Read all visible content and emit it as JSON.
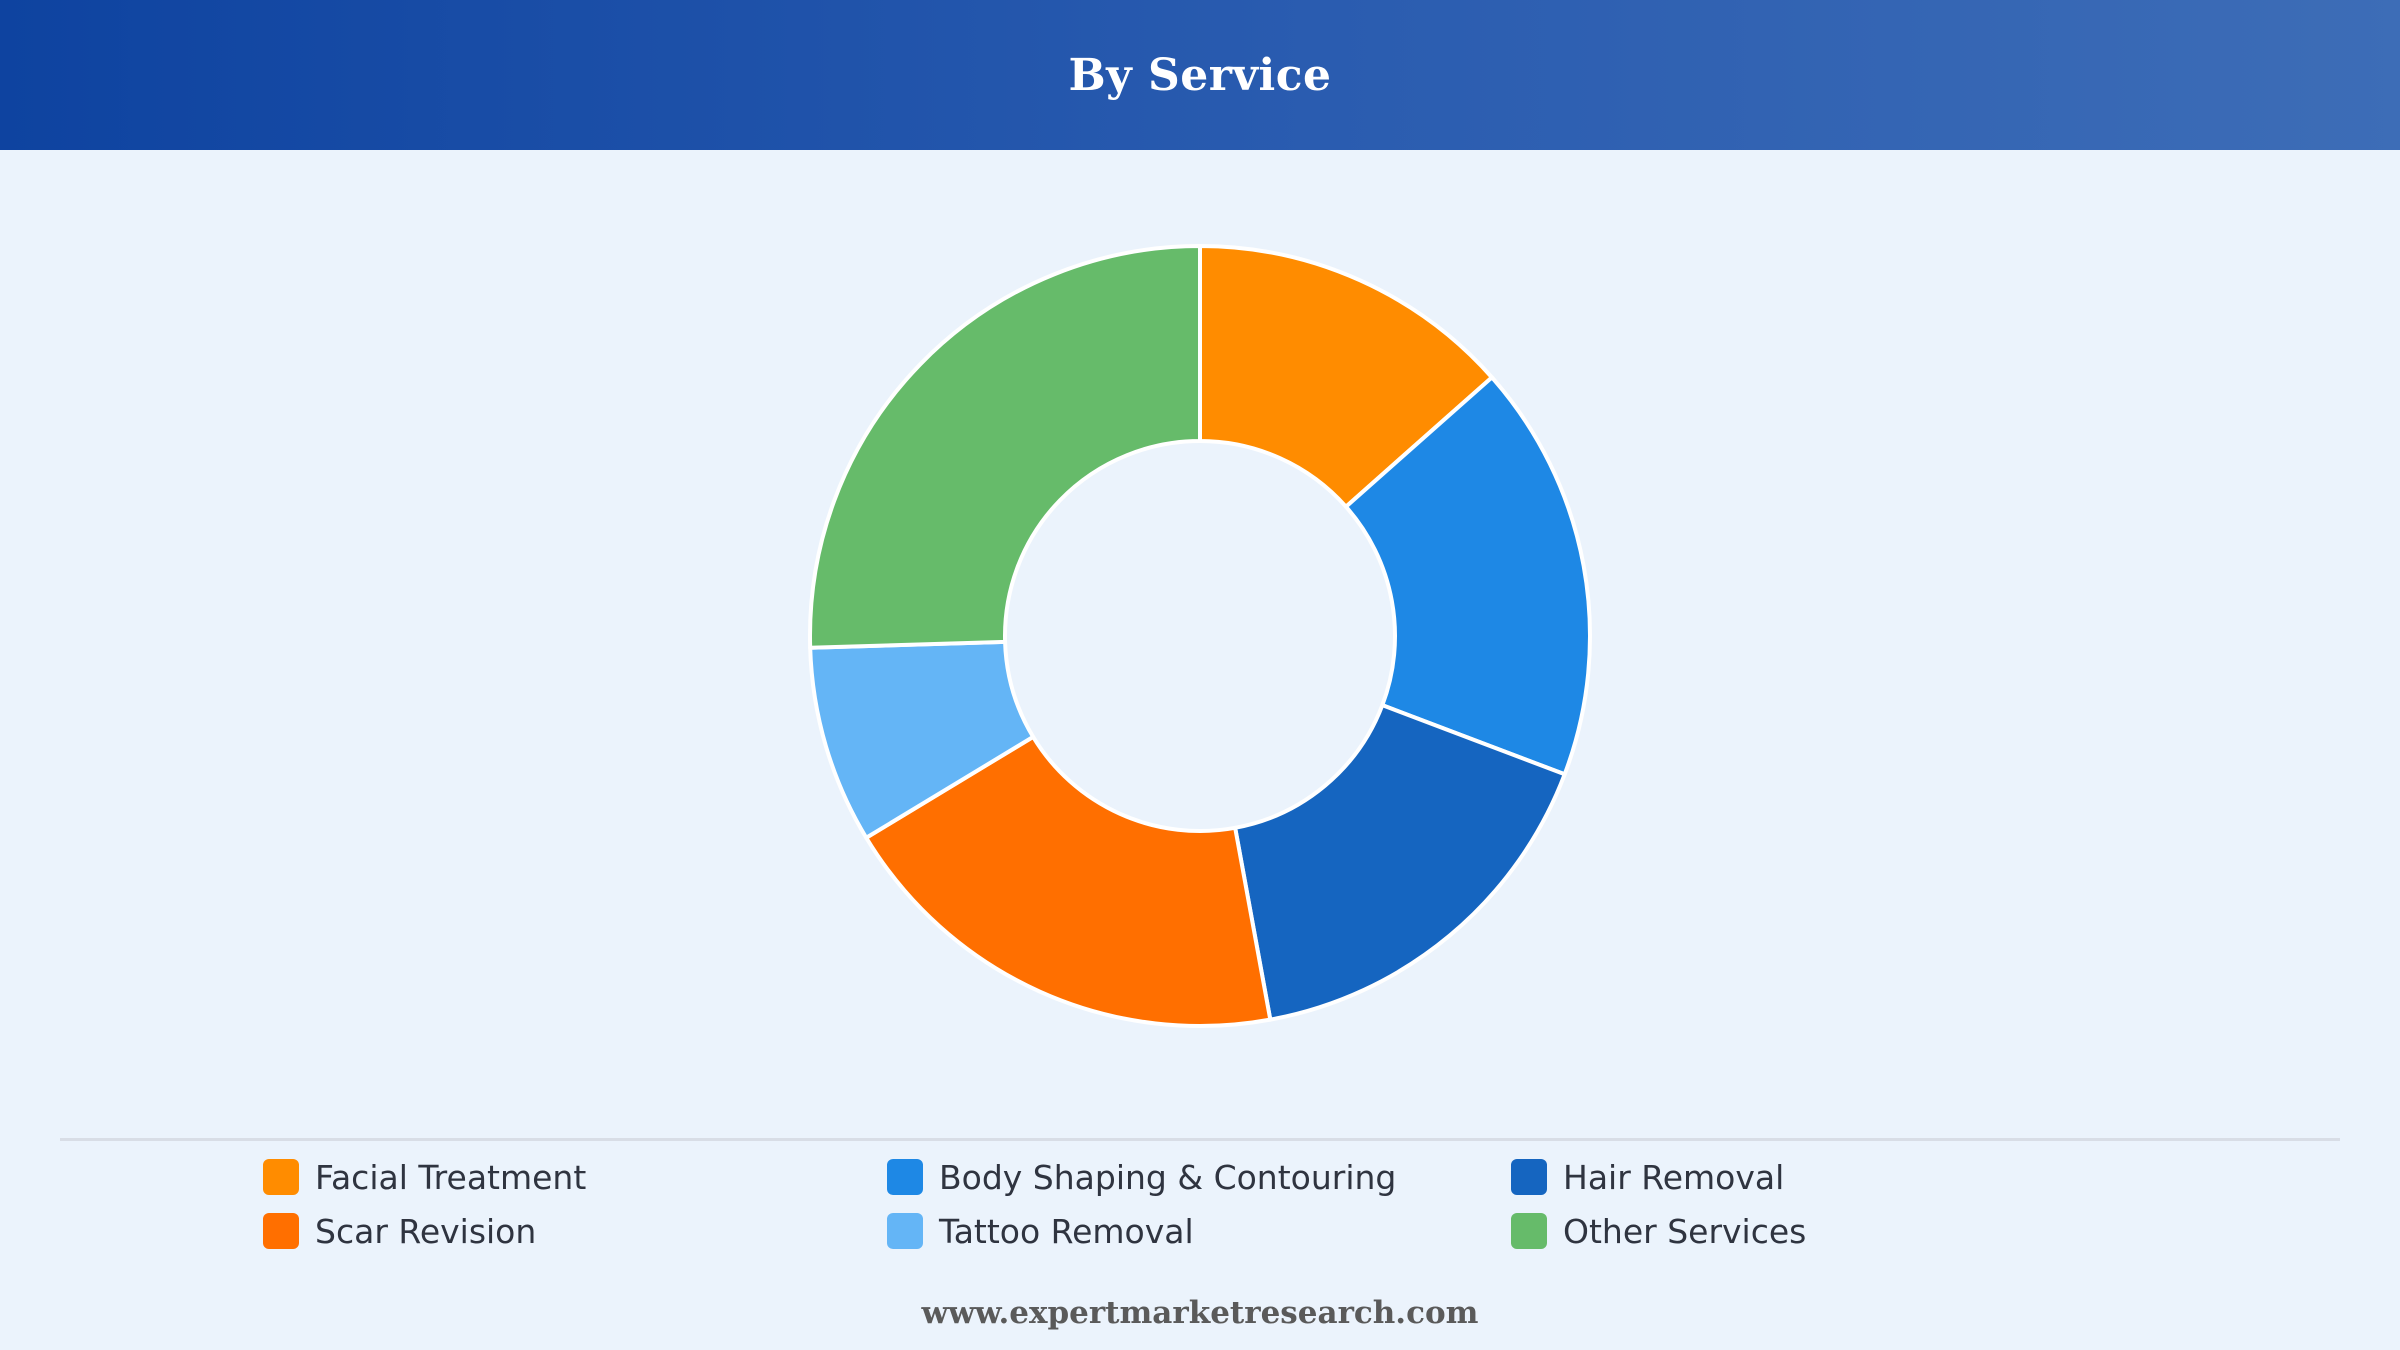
{
  "header": {
    "title": "By Service"
  },
  "chart_data": {
    "type": "pie",
    "title": "By Service",
    "donut": true,
    "categories": [
      "Facial Treatment",
      "Body Shaping & Contouring",
      "Hair Removal",
      "Scar Revision",
      "Tattoo Removal",
      "Other Services"
    ],
    "values": [
      14,
      18,
      17,
      20,
      8.5,
      26.5
    ],
    "colors": [
      "#ff8c00",
      "#1e88e5",
      "#1565c0",
      "#ff6f00",
      "#64b5f6",
      "#66bb6a"
    ],
    "legend_position": "bottom"
  },
  "legend": {
    "items": [
      {
        "label": "Facial Treatment",
        "color": "#ff8c00"
      },
      {
        "label": "Body Shaping & Contouring",
        "color": "#1e88e5"
      },
      {
        "label": "Hair Removal",
        "color": "#1565c0"
      },
      {
        "label": "Scar Revision",
        "color": "#ff6f00"
      },
      {
        "label": "Tattoo Removal",
        "color": "#64b5f6"
      },
      {
        "label": "Other Services",
        "color": "#66bb6a"
      }
    ]
  },
  "footer": {
    "source": "www.expertmarketresearch.com"
  }
}
